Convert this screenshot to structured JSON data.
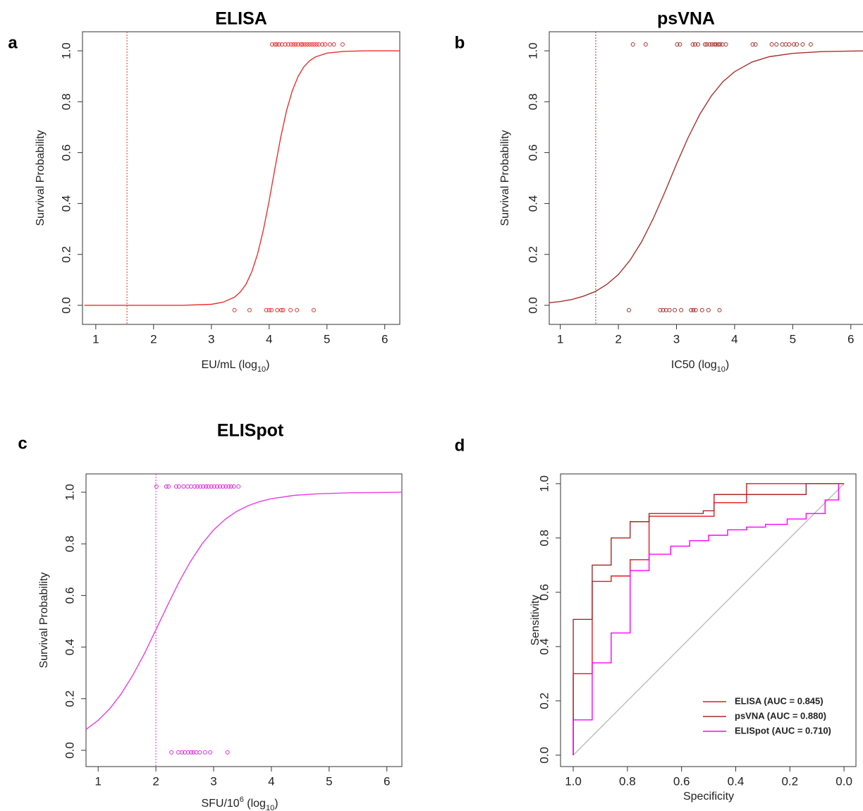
{
  "chart_data": [
    {
      "type": "line",
      "label": "a",
      "title": "ELISA",
      "xlabel": [
        {
          "text": "EU/mL  (log"
        },
        {
          "text": "10",
          "shift": "sub"
        },
        {
          "text": ")"
        }
      ],
      "ylabel": "Survival Probability",
      "xlim": [
        0.77,
        6.26
      ],
      "ylim": [
        -0.075,
        1.075
      ],
      "xticks": [
        1,
        2,
        3,
        4,
        5,
        6
      ],
      "yticks": [
        {
          "value": 0,
          "label": "0.0"
        },
        0.2,
        0.4,
        0.6,
        0.8,
        {
          "value": 1,
          "label": "1.0"
        }
      ],
      "vline": {
        "x": 1.54,
        "color": "#e8312f",
        "style": "dotted"
      },
      "series": [
        {
          "color": "#e8312f",
          "style": "line",
          "x": [
            0.8,
            1.5,
            2.0,
            2.5,
            3.0,
            3.2,
            3.4,
            3.5,
            3.6,
            3.7,
            3.8,
            3.9,
            4.0,
            4.1,
            4.2,
            4.3,
            4.4,
            4.5,
            4.6,
            4.7,
            4.8,
            5.0,
            5.3,
            5.7,
            6.26
          ],
          "values": [
            0,
            0,
            0,
            0,
            0.004,
            0.012,
            0.032,
            0.052,
            0.083,
            0.132,
            0.202,
            0.296,
            0.411,
            0.538,
            0.66,
            0.764,
            0.843,
            0.899,
            0.937,
            0.961,
            0.976,
            0.991,
            0.998,
            1,
            1
          ]
        },
        {
          "color": "#e8312f",
          "style": "points",
          "x": [
            4.05,
            4.1,
            4.13,
            4.17,
            4.22,
            4.28,
            4.33,
            4.38,
            4.42,
            4.46,
            4.5,
            4.55,
            4.58,
            4.62,
            4.66,
            4.7,
            4.74,
            4.78,
            4.82,
            4.86,
            4.92,
            4.97,
            5.05,
            5.12,
            5.27
          ],
          "values": [
            1.025,
            1.025,
            1.025,
            1.025,
            1.025,
            1.025,
            1.025,
            1.025,
            1.025,
            1.025,
            1.025,
            1.025,
            1.025,
            1.025,
            1.025,
            1.025,
            1.025,
            1.025,
            1.025,
            1.025,
            1.025,
            1.025,
            1.025,
            1.025,
            1.025
          ]
        },
        {
          "color": "#e8312f",
          "style": "points",
          "x": [
            3.4,
            3.66,
            3.95,
            4.0,
            4.04,
            4.14,
            4.21,
            4.24,
            4.37,
            4.48,
            4.77
          ],
          "values": [
            -0.019,
            -0.019,
            -0.019,
            -0.019,
            -0.019,
            -0.019,
            -0.019,
            -0.019,
            -0.019,
            -0.019,
            -0.019
          ]
        }
      ]
    },
    {
      "type": "line",
      "label": "b",
      "title": "psVNA",
      "xlabel": [
        {
          "text": "IC50   (log"
        },
        {
          "text": "10",
          "shift": "sub"
        },
        {
          "text": ")"
        }
      ],
      "ylabel": "Survival Probability",
      "xlim": [
        0.81,
        6.27
      ],
      "ylim": [
        -0.075,
        1.075
      ],
      "xticks": [
        1,
        2,
        3,
        4,
        5,
        6
      ],
      "yticks": [
        {
          "value": 0,
          "label": "0.0"
        },
        0.2,
        0.4,
        0.6,
        0.8,
        {
          "value": 1,
          "label": "1.0"
        }
      ],
      "vline": {
        "x": 1.61,
        "color": "#a8322c",
        "style": "dotted"
      },
      "series": [
        {
          "color": "#a8322c",
          "style": "line",
          "x": [
            0.81,
            1.0,
            1.2,
            1.4,
            1.6,
            1.8,
            2.0,
            2.2,
            2.4,
            2.6,
            2.8,
            3.0,
            3.2,
            3.4,
            3.6,
            3.8,
            4.0,
            4.3,
            4.6,
            5.0,
            5.5,
            6.0,
            6.27
          ],
          "values": [
            0.01,
            0.015,
            0.023,
            0.036,
            0.054,
            0.082,
            0.121,
            0.177,
            0.25,
            0.341,
            0.445,
            0.555,
            0.659,
            0.75,
            0.823,
            0.879,
            0.918,
            0.956,
            0.977,
            0.99,
            0.997,
            0.999,
            1
          ]
        },
        {
          "color": "#a8322c",
          "style": "points",
          "x": [
            2.25,
            2.47,
            3.01,
            3.06,
            3.28,
            3.32,
            3.37,
            3.49,
            3.52,
            3.57,
            3.61,
            3.65,
            3.68,
            3.72,
            3.75,
            3.79,
            3.85,
            4.31,
            4.36,
            4.64,
            4.72,
            4.82,
            4.88,
            4.94,
            5.02,
            5.07,
            5.17,
            5.31
          ],
          "values": [
            1.025,
            1.025,
            1.025,
            1.025,
            1.025,
            1.025,
            1.025,
            1.025,
            1.025,
            1.025,
            1.025,
            1.025,
            1.025,
            1.025,
            1.025,
            1.025,
            1.025,
            1.025,
            1.025,
            1.025,
            1.025,
            1.025,
            1.025,
            1.025,
            1.025,
            1.025,
            1.025,
            1.025
          ]
        },
        {
          "color": "#a8322c",
          "style": "points",
          "x": [
            2.18,
            2.72,
            2.77,
            2.82,
            2.88,
            2.97,
            3.08,
            3.25,
            3.29,
            3.33,
            3.44,
            3.55,
            3.74
          ],
          "values": [
            -0.019,
            -0.019,
            -0.019,
            -0.019,
            -0.019,
            -0.019,
            -0.019,
            -0.019,
            -0.019,
            -0.019,
            -0.019,
            -0.019,
            -0.019
          ]
        }
      ]
    },
    {
      "type": "line",
      "label": "c",
      "title": "ELISpot",
      "xlabel": [
        {
          "text": "SFU/10"
        },
        {
          "text": "6",
          "shift": "super"
        },
        {
          "text": "   (log"
        },
        {
          "text": "10",
          "shift": "sub"
        },
        {
          "text": ")"
        }
      ],
      "ylabel": "Survival Probability",
      "xlim": [
        0.79,
        6.26
      ],
      "ylim": [
        -0.063,
        1.071
      ],
      "xticks": [
        1,
        2,
        3,
        4,
        5,
        6
      ],
      "yticks": [
        {
          "value": 0,
          "label": "0.0"
        },
        0.2,
        0.4,
        0.6,
        0.8,
        {
          "value": 1,
          "label": "1.0"
        }
      ],
      "vline": {
        "x": 2.0,
        "color": "#e02ee0",
        "style": "dotted"
      },
      "series": [
        {
          "color": "#e83ee8",
          "style": "line",
          "x": [
            0.79,
            1.0,
            1.2,
            1.4,
            1.6,
            1.8,
            2.0,
            2.2,
            2.4,
            2.6,
            2.8,
            3.0,
            3.2,
            3.4,
            3.6,
            3.8,
            4.0,
            4.4,
            4.8,
            5.4,
            6.0,
            6.26
          ],
          "values": [
            0.081,
            0.116,
            0.161,
            0.219,
            0.291,
            0.374,
            0.467,
            0.561,
            0.652,
            0.732,
            0.8,
            0.854,
            0.895,
            0.926,
            0.948,
            0.964,
            0.975,
            0.988,
            0.994,
            0.998,
            0.999,
            1
          ]
        },
        {
          "color": "#e02ee0",
          "style": "points",
          "x": [
            2.01,
            2.18,
            2.22,
            2.35,
            2.4,
            2.48,
            2.55,
            2.61,
            2.67,
            2.72,
            2.77,
            2.82,
            2.87,
            2.91,
            2.96,
            3.01,
            3.06,
            3.11,
            3.16,
            3.21,
            3.26,
            3.3,
            3.35,
            3.43
          ],
          "values": [
            1.022,
            1.022,
            1.022,
            1.022,
            1.022,
            1.022,
            1.022,
            1.022,
            1.022,
            1.022,
            1.022,
            1.022,
            1.022,
            1.022,
            1.022,
            1.022,
            1.022,
            1.022,
            1.022,
            1.022,
            1.022,
            1.022,
            1.022,
            1.022
          ]
        },
        {
          "color": "#e02ee0",
          "style": "points",
          "x": [
            2.27,
            2.39,
            2.45,
            2.5,
            2.56,
            2.61,
            2.65,
            2.7,
            2.76,
            2.85,
            2.94,
            3.24
          ],
          "values": [
            -0.008,
            -0.008,
            -0.008,
            -0.008,
            -0.008,
            -0.008,
            -0.008,
            -0.008,
            -0.008,
            -0.008,
            -0.008,
            -0.008
          ]
        }
      ]
    },
    {
      "type": "line",
      "label": "d",
      "xlabel": [
        {
          "text": "Specificity"
        }
      ],
      "ylabel": "Sensitivity",
      "xlim": [
        1.047,
        -0.044
      ],
      "ylim": [
        -0.042,
        1.036
      ],
      "xticks": [
        {
          "value": 1,
          "label": "1.0"
        },
        0.8,
        0.6,
        0.4,
        0.2,
        {
          "value": 0,
          "label": "0.0"
        }
      ],
      "yticks": [
        {
          "value": 0,
          "label": "0.0"
        },
        0.2,
        0.4,
        0.6,
        0.8,
        {
          "value": 1,
          "label": "1.0"
        }
      ],
      "legend": "bottom-right",
      "series": [
        {
          "color": "#bbbbbb",
          "style": "line",
          "x": [
            1,
            0
          ],
          "values": [
            0,
            1
          ]
        },
        {
          "name": "ELISA (AUC = 0.845)",
          "color": "#e41a1c",
          "style": "line",
          "x": [
            1.0,
            1.0,
            0.93,
            0.93,
            0.86,
            0.86,
            0.79,
            0.79,
            0.72,
            0.72,
            0.48,
            0.48,
            0.36,
            0.36,
            0
          ],
          "values": [
            0,
            0.3,
            0.3,
            0.64,
            0.64,
            0.66,
            0.66,
            0.72,
            0.72,
            0.88,
            0.88,
            0.93,
            0.93,
            1.0,
            1.0
          ]
        },
        {
          "name": "psVNA (AUC = 0.880)",
          "color": "#a52a2a",
          "style": "line",
          "x": [
            1.0,
            1.0,
            0.93,
            0.93,
            0.86,
            0.86,
            0.79,
            0.79,
            0.72,
            0.72,
            0.52,
            0.52,
            0.48,
            0.48,
            0.14,
            0.14,
            0
          ],
          "values": [
            0,
            0.5,
            0.5,
            0.7,
            0.7,
            0.8,
            0.8,
            0.86,
            0.86,
            0.89,
            0.89,
            0.9,
            0.9,
            0.96,
            0.96,
            1.0,
            1.0
          ]
        },
        {
          "name": "ELISpot (AUC = 0.710)",
          "color": "#ff00ff",
          "style": "line",
          "x": [
            1.0,
            1.0,
            0.93,
            0.93,
            0.86,
            0.86,
            0.79,
            0.79,
            0.72,
            0.72,
            0.64,
            0.64,
            0.57,
            0.57,
            0.5,
            0.5,
            0.43,
            0.43,
            0.36,
            0.36,
            0.29,
            0.29,
            0.21,
            0.21,
            0.14,
            0.14,
            0.07,
            0.07,
            0.02,
            0.02
          ],
          "values": [
            0,
            0.13,
            0.13,
            0.34,
            0.34,
            0.45,
            0.45,
            0.68,
            0.68,
            0.74,
            0.74,
            0.77,
            0.77,
            0.79,
            0.79,
            0.81,
            0.81,
            0.83,
            0.83,
            0.84,
            0.84,
            0.85,
            0.85,
            0.87,
            0.87,
            0.89,
            0.89,
            0.94,
            0.94,
            1.0
          ]
        }
      ]
    }
  ]
}
